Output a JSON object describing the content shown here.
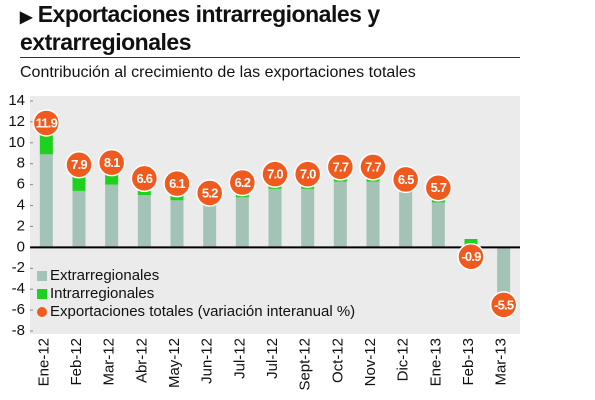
{
  "chart_data": {
    "type": "bar",
    "title": "Exportaciones intrarregionales y extrarregionales",
    "subtitle": "Contribución al crecimiento de las exportaciones totales",
    "categories": [
      "Ene-12",
      "Feb-12",
      "Mar-12",
      "Abr-12",
      "May-12",
      "Jun-12",
      "Jul-12",
      "Jul-12",
      "Sept-12",
      "Oct-12",
      "Nov-12",
      "Dic-12",
      "Ene-13",
      "Feb-13",
      "Mar-13"
    ],
    "series": [
      {
        "name": "Extrarregionales",
        "color": "#a2c3b6",
        "values": [
          8.9,
          5.4,
          6.0,
          5.0,
          4.5,
          4.0,
          4.8,
          5.6,
          5.6,
          6.3,
          6.3,
          5.5,
          4.3,
          0,
          -5.3
        ]
      },
      {
        "name": "Intrarregionales",
        "color": "#1fd11f",
        "values": [
          3.0,
          2.5,
          2.1,
          1.6,
          1.6,
          1.2,
          1.4,
          1.4,
          1.4,
          1.4,
          1.4,
          1.0,
          1.4,
          0.8,
          -0.2
        ]
      },
      {
        "name": "Exportaciones totales (variación interanual %)",
        "color": "#f05a1e",
        "marker": "circle",
        "values": [
          11.9,
          7.9,
          8.1,
          6.6,
          6.1,
          5.2,
          6.2,
          7.0,
          7.0,
          7.7,
          7.7,
          6.5,
          5.7,
          -0.9,
          -5.5
        ],
        "value_labels": [
          "11.9",
          "7.9",
          "8.1",
          "6.6",
          "6.1",
          "5.2",
          "6.2",
          "7.0",
          "7.0",
          "7.7",
          "7.7",
          "6.5",
          "5.7",
          "-0.9",
          "-5.5"
        ]
      }
    ],
    "ylim": [
      -8,
      14
    ],
    "yticks": [
      -8,
      -6,
      -4,
      -2,
      0,
      2,
      4,
      6,
      8,
      10,
      12,
      14
    ]
  }
}
